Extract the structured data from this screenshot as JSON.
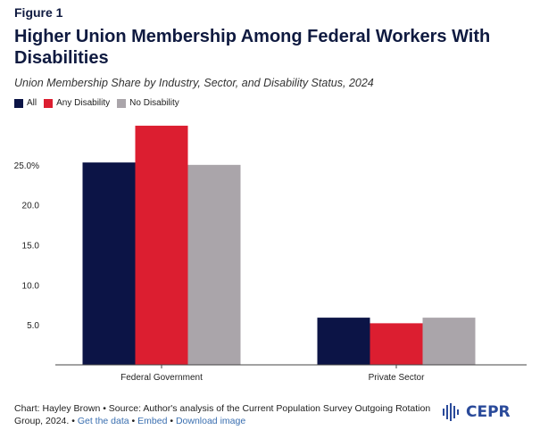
{
  "header": {
    "figure_label": "Figure 1",
    "title": "Higher Union Membership Among Federal Workers With Disabilities",
    "subtitle": "Union Membership Share by Industry, Sector, and Disability Status, 2024"
  },
  "footer": {
    "credit": "Chart: Hayley Brown • Source: Author's analysis of the Current Population Survey Outgoing Rotation Group, 2024. •",
    "link_data": "Get the data",
    "sep1": "•",
    "link_embed": "Embed",
    "sep2": "•",
    "link_download": "Download image",
    "logo_text": "CEPR"
  },
  "chart_data": {
    "type": "bar",
    "categories": [
      "Federal Government",
      "Private Sector"
    ],
    "series": [
      {
        "name": "All",
        "color": "#0c1446",
        "values": [
          25.3,
          5.9
        ]
      },
      {
        "name": "Any Disability",
        "color": "#dc1e30",
        "values": [
          29.9,
          5.2
        ]
      },
      {
        "name": "No Disability",
        "color": "#aaa5aa",
        "values": [
          25.0,
          5.9
        ]
      }
    ],
    "y_ticks": [
      5.0,
      10.0,
      15.0,
      20.0,
      25.0
    ],
    "y_tick_labels": [
      "5.0",
      "10.0",
      "15.0",
      "20.0",
      "25.0%"
    ],
    "ylim": [
      0,
      30
    ],
    "xlabel": "",
    "ylabel": "",
    "grid": false,
    "legend_position": "top-left"
  }
}
